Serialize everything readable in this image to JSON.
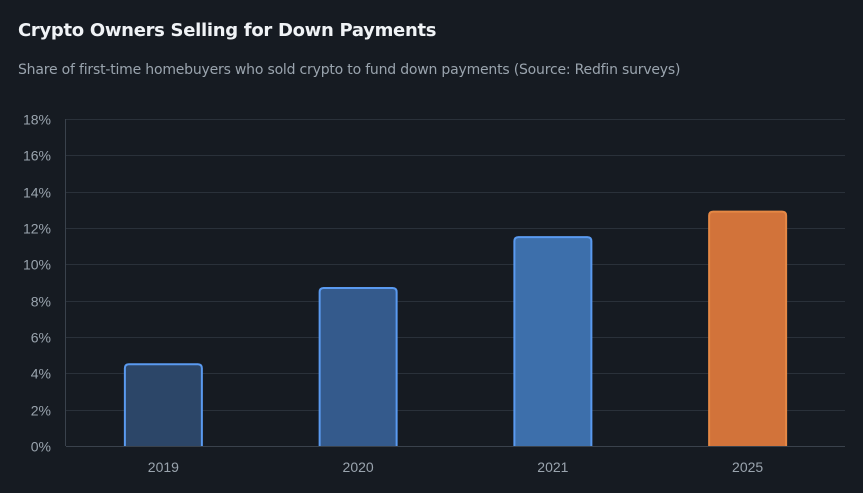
{
  "header": {
    "title": "Crypto Owners Selling for Down Payments",
    "subtitle": "Share of first-time homebuyers who sold crypto to fund down payments (Source: Redfin surveys)"
  },
  "colors": {
    "background": "#161b22",
    "grid": "#2a313a",
    "axis": "#3a424c",
    "tick_text": "#9aa4ae",
    "bars": [
      {
        "fill": "#2c4668",
        "stroke": "#5a9af0"
      },
      {
        "fill": "#345a8c",
        "stroke": "#5a9af0"
      },
      {
        "fill": "#3d6fab",
        "stroke": "#5a9af0"
      },
      {
        "fill": "#d2733a",
        "stroke": "#e58845"
      }
    ]
  },
  "chart_data": {
    "type": "bar",
    "title": "Crypto Owners Selling for Down Payments",
    "subtitle": "Share of first-time homebuyers who sold crypto to fund down payments (Source: Redfin surveys)",
    "categories": [
      "2019",
      "2020",
      "2021",
      "2025"
    ],
    "values": [
      4.5,
      8.7,
      11.5,
      12.9
    ],
    "ylim": [
      0,
      18
    ],
    "yticks": [
      "0%",
      "2%",
      "4%",
      "6%",
      "8%",
      "10%",
      "12%",
      "14%",
      "16%",
      "18%"
    ],
    "ytick_values": [
      0,
      2,
      4,
      6,
      8,
      10,
      12,
      14,
      16,
      18
    ],
    "xlabel": "",
    "ylabel": "",
    "grid": true,
    "legend": "none"
  }
}
